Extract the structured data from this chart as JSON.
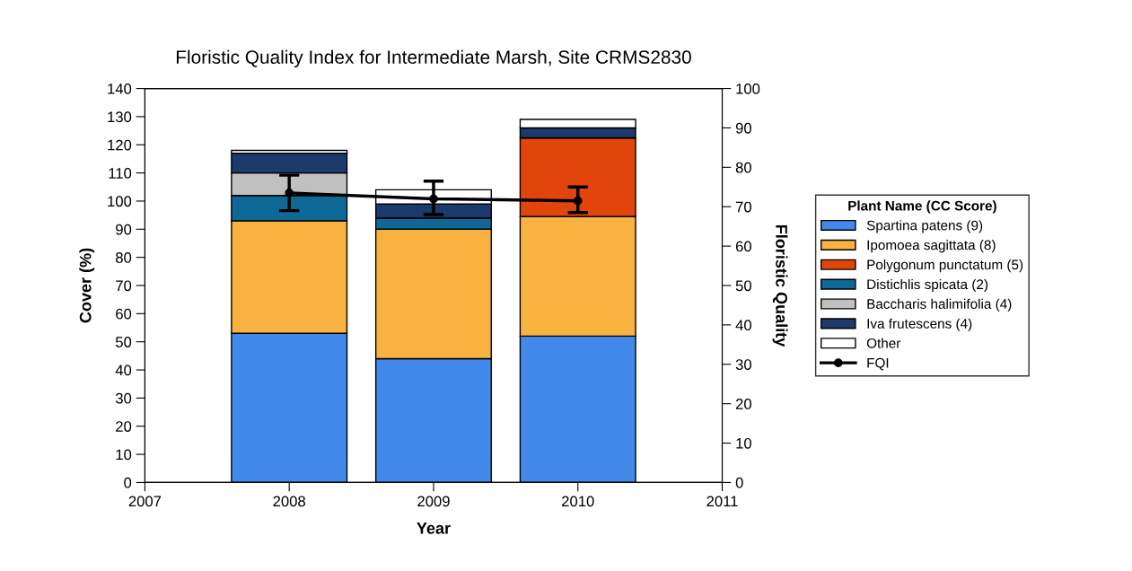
{
  "chart_data": {
    "type": "bar",
    "title": "Floristic Quality Index for Intermediate Marsh, Site CRMS2830",
    "xlabel": "Year",
    "ylabel": "Cover (%)",
    "y2label": "Floristic Quality",
    "legend_title": "Plant Name (CC Score)",
    "x": [
      2008,
      2009,
      2010
    ],
    "stacked": true,
    "series": [
      {
        "name": "Spartina patens (9)",
        "color": "#4189ea",
        "values": [
          53,
          44,
          52
        ]
      },
      {
        "name": "Ipomoea sagittata (8)",
        "color": "#f9b13f",
        "values": [
          40,
          46,
          42.5
        ]
      },
      {
        "name": "Polygonum punctatum (5)",
        "color": "#e2450c",
        "values": [
          0,
          0,
          28
        ]
      },
      {
        "name": "Distichlis spicata (2)",
        "color": "#0e6996",
        "values": [
          9,
          4,
          0
        ]
      },
      {
        "name": "Baccharis halimifolia (4)",
        "color": "#c0c0c0",
        "values": [
          8,
          0,
          0
        ]
      },
      {
        "name": "Iva frutescens (4)",
        "color": "#1c3a6b",
        "values": [
          7,
          5,
          3.5
        ]
      },
      {
        "name": "Other",
        "color": "#ffffff",
        "values": [
          1,
          5,
          3
        ]
      },
      {
        "name": "FQI",
        "type": "line",
        "axis": "y2",
        "color": "#000000",
        "marker": "circle",
        "x": [
          2008,
          2009,
          2010
        ],
        "values": [
          73.5,
          72,
          71.5
        ],
        "errors": [
          [
            69,
            78
          ],
          [
            68,
            76.5
          ],
          [
            68.5,
            75
          ]
        ]
      }
    ],
    "xlim": [
      2007,
      2011
    ],
    "xticks": [
      2007,
      2008,
      2009,
      2010,
      2011
    ],
    "ylim": [
      0,
      140
    ],
    "yticks": [
      0,
      10,
      20,
      30,
      40,
      50,
      60,
      70,
      80,
      90,
      100,
      110,
      120,
      130,
      140
    ],
    "y2lim": [
      0,
      100
    ],
    "y2ticks": [
      0,
      10,
      20,
      30,
      40,
      50,
      60,
      70,
      80,
      90,
      100
    ],
    "legend": "right",
    "grid": false
  }
}
